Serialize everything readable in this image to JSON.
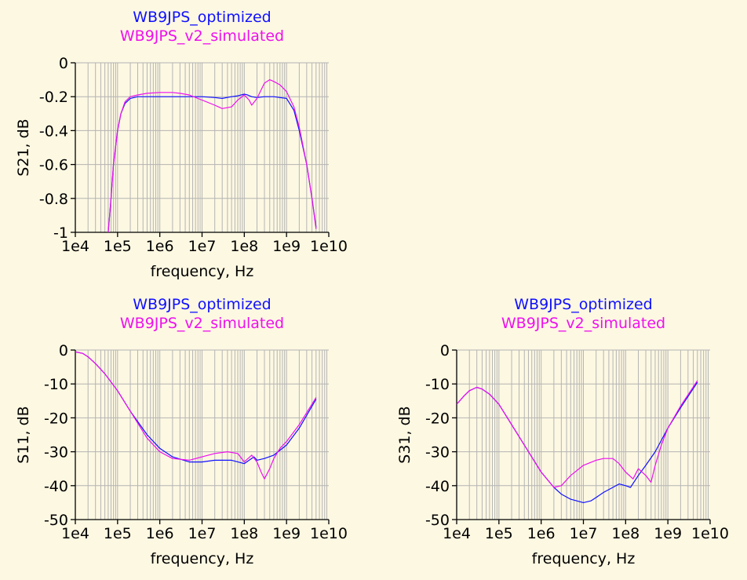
{
  "colors": {
    "background": "#fdf8e2",
    "series_blue": "#1010ff",
    "series_magenta": "#ee10ee",
    "grid": "#b4b4b4",
    "axis": "#000000"
  },
  "chart_data": [
    {
      "id": "s21",
      "type": "line",
      "title_lines": [
        "WB9JPS_optimized",
        "WB9JPS_v2_simulated"
      ],
      "xlabel": "frequency, Hz",
      "ylabel": "S21, dB",
      "xscale": "log",
      "xlim": [
        10000,
        10000000000
      ],
      "ylim": [
        -1,
        0
      ],
      "x_ticks": [
        "1e4",
        "1e5",
        "1e6",
        "1e7",
        "1e8",
        "1e9",
        "1e10"
      ],
      "y_ticks": [
        "0",
        "-0.2",
        "-0.4",
        "-0.6",
        "-0.8",
        "-1"
      ],
      "y_tick_values": [
        0,
        -0.2,
        -0.4,
        -0.6,
        -0.8,
        -1
      ],
      "grid": true,
      "series": [
        {
          "name": "WB9JPS_optimized",
          "color": "blue",
          "x": [
            60000,
            70000,
            80000,
            100000,
            120000,
            150000,
            200000,
            300000,
            500000,
            1000000,
            2000000,
            5000000,
            10000000,
            20000000,
            30000000,
            50000000,
            70000000,
            100000000,
            120000000,
            150000000,
            200000000,
            300000000,
            500000000,
            700000000,
            1000000000,
            1500000000,
            2000000000,
            3000000000,
            4000000000,
            5000000000
          ],
          "y": [
            -1.0,
            -0.8,
            -0.6,
            -0.4,
            -0.3,
            -0.24,
            -0.21,
            -0.2,
            -0.2,
            -0.2,
            -0.2,
            -0.2,
            -0.2,
            -0.205,
            -0.21,
            -0.2,
            -0.195,
            -0.185,
            -0.19,
            -0.2,
            -0.205,
            -0.2,
            -0.2,
            -0.205,
            -0.21,
            -0.28,
            -0.4,
            -0.6,
            -0.8,
            -0.97
          ]
        },
        {
          "name": "WB9JPS_v2_simulated",
          "color": "magenta",
          "x": [
            60000,
            70000,
            80000,
            100000,
            120000,
            150000,
            200000,
            300000,
            500000,
            1000000,
            2000000,
            3000000,
            5000000,
            10000000,
            20000000,
            30000000,
            50000000,
            70000000,
            100000000,
            130000000,
            150000000,
            200000000,
            300000000,
            400000000,
            500000000,
            700000000,
            1000000000,
            1500000000,
            2000000000,
            3000000000,
            4000000000,
            5000000000
          ],
          "y": [
            -1.0,
            -0.8,
            -0.6,
            -0.4,
            -0.3,
            -0.23,
            -0.2,
            -0.19,
            -0.18,
            -0.175,
            -0.175,
            -0.18,
            -0.19,
            -0.22,
            -0.25,
            -0.27,
            -0.26,
            -0.22,
            -0.19,
            -0.22,
            -0.25,
            -0.21,
            -0.12,
            -0.1,
            -0.11,
            -0.13,
            -0.17,
            -0.26,
            -0.38,
            -0.6,
            -0.8,
            -0.98
          ]
        }
      ]
    },
    {
      "id": "s11",
      "type": "line",
      "title_lines": [
        "WB9JPS_optimized",
        "WB9JPS_v2_simulated"
      ],
      "xlabel": "frequency, Hz",
      "ylabel": "S11, dB",
      "xscale": "log",
      "xlim": [
        10000,
        10000000000
      ],
      "ylim": [
        -50,
        0
      ],
      "x_ticks": [
        "1e4",
        "1e5",
        "1e6",
        "1e7",
        "1e8",
        "1e9",
        "1e10"
      ],
      "y_ticks": [
        "0",
        "-10",
        "-20",
        "-30",
        "-40",
        "-50"
      ],
      "y_tick_values": [
        0,
        -10,
        -20,
        -30,
        -40,
        -50
      ],
      "grid": true,
      "series": [
        {
          "name": "WB9JPS_optimized",
          "color": "blue",
          "x": [
            10000,
            15000,
            20000,
            30000,
            50000,
            100000,
            200000,
            500000,
            1000000,
            2000000,
            5000000,
            10000000,
            20000000,
            50000000,
            100000000,
            130000000,
            170000000,
            200000000,
            300000000,
            500000000,
            1000000000,
            2000000000,
            5000000000
          ],
          "y": [
            -0.5,
            -1,
            -2,
            -4,
            -7,
            -12,
            -18,
            -25,
            -29,
            -31.5,
            -33,
            -33,
            -32.5,
            -32.5,
            -33.5,
            -32.5,
            -31.5,
            -32.5,
            -32,
            -31,
            -28,
            -23,
            -14.5
          ]
        },
        {
          "name": "WB9JPS_v2_simulated",
          "color": "magenta",
          "x": [
            10000,
            15000,
            20000,
            30000,
            50000,
            100000,
            200000,
            500000,
            1000000,
            2000000,
            5000000,
            10000000,
            20000000,
            40000000,
            70000000,
            100000000,
            150000000,
            200000000,
            250000000,
            300000000,
            400000000,
            500000000,
            700000000,
            1000000000,
            2000000000,
            5000000000
          ],
          "y": [
            -0.5,
            -1,
            -2,
            -4,
            -7,
            -12,
            -18,
            -26,
            -30,
            -32,
            -32.5,
            -31.5,
            -30.5,
            -30,
            -30.5,
            -33,
            -31,
            -33,
            -36,
            -38,
            -35,
            -32,
            -29,
            -27,
            -22,
            -14
          ]
        }
      ]
    },
    {
      "id": "s31",
      "type": "line",
      "title_lines": [
        "WB9JPS_optimized",
        "WB9JPS_v2_simulated"
      ],
      "xlabel": "frequency, Hz",
      "ylabel": "S31, dB",
      "xscale": "log",
      "xlim": [
        10000,
        10000000000
      ],
      "ylim": [
        -50,
        0
      ],
      "x_ticks": [
        "1e4",
        "1e5",
        "1e6",
        "1e7",
        "1e8",
        "1e9",
        "1e10"
      ],
      "y_ticks": [
        "0",
        "-10",
        "-20",
        "-30",
        "-40",
        "-50"
      ],
      "y_tick_values": [
        0,
        -10,
        -20,
        -30,
        -40,
        -50
      ],
      "grid": true,
      "series": [
        {
          "name": "WB9JPS_optimized",
          "color": "blue",
          "x": [
            10000,
            15000,
            20000,
            30000,
            40000,
            60000,
            100000,
            200000,
            500000,
            1000000,
            2000000,
            3000000,
            5000000,
            10000000,
            15000000,
            20000000,
            30000000,
            50000000,
            70000000,
            100000000,
            130000000,
            200000000,
            300000000,
            500000000,
            1000000000,
            2000000000,
            5000000000
          ],
          "y": [
            -16,
            -13.5,
            -12,
            -11,
            -11.5,
            -13,
            -16,
            -22,
            -30,
            -36,
            -40.5,
            -42.5,
            -44,
            -45,
            -44.5,
            -43.5,
            -42,
            -40.5,
            -39.5,
            -40,
            -40.5,
            -37,
            -34,
            -30,
            -23,
            -17,
            -9.5
          ]
        },
        {
          "name": "WB9JPS_v2_simulated",
          "color": "magenta",
          "x": [
            10000,
            15000,
            20000,
            30000,
            40000,
            60000,
            100000,
            200000,
            500000,
            1000000,
            2000000,
            3000000,
            5000000,
            10000000,
            20000000,
            30000000,
            50000000,
            70000000,
            100000000,
            150000000,
            200000000,
            300000000,
            400000000,
            500000000,
            700000000,
            1000000000,
            2000000000,
            5000000000
          ],
          "y": [
            -16,
            -13.5,
            -12,
            -11,
            -11.5,
            -13,
            -16,
            -22,
            -30,
            -36,
            -40.5,
            -40,
            -37,
            -34,
            -32.5,
            -32,
            -32,
            -33.5,
            -36,
            -38,
            -35,
            -37,
            -39,
            -34,
            -28,
            -23,
            -16.5,
            -9
          ]
        }
      ]
    }
  ]
}
